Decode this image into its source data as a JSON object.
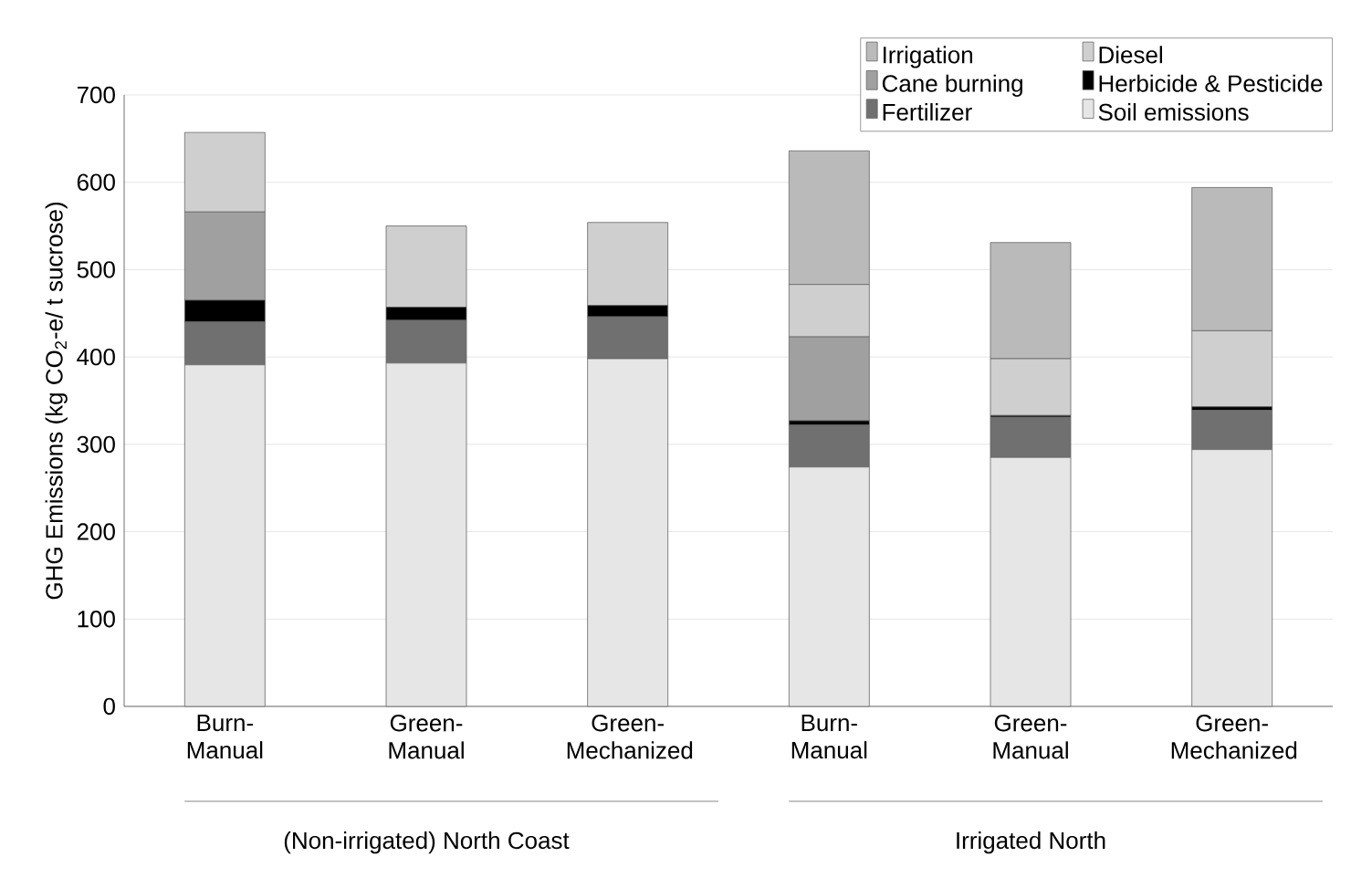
{
  "chart_data": {
    "type": "bar",
    "stacked": true,
    "ylabel": "GHG Emissions (kg CO$_{2}$-e/ t sucrose)",
    "categories": [
      "Burn-Manual",
      "Green-Manual",
      "Green-Mechanized",
      "Burn-Manual",
      "Green-Manual",
      "Green-Mechanized"
    ],
    "series": [
      {
        "name": "Soil emissions",
        "color": "#e6e6e6",
        "values": [
          391,
          393,
          398,
          274,
          285,
          294
        ]
      },
      {
        "name": "Fertilizer",
        "color": "#707070",
        "values": [
          49,
          49,
          48,
          48,
          46,
          45
        ]
      },
      {
        "name": "Herbicide & Pesticide",
        "color": "#000000",
        "values": [
          25,
          15,
          13,
          5,
          2,
          4
        ]
      },
      {
        "name": "Cane burning",
        "color": "#a0a0a0",
        "values": [
          101,
          0,
          0,
          96,
          0,
          0
        ]
      },
      {
        "name": "Diesel",
        "color": "#cfcfcf",
        "values": [
          91,
          93,
          95,
          60,
          65,
          87
        ]
      },
      {
        "name": "Irrigation",
        "color": "#bababa",
        "values": [
          0,
          0,
          0,
          153,
          133,
          164
        ]
      }
    ],
    "ylim": [
      0,
      700
    ],
    "yticks": [
      0,
      100,
      200,
      300,
      400,
      500,
      600,
      700
    ],
    "grid": "y",
    "legend": "top right",
    "annotations": [
      "(Non-irrigated) North Coast",
      "Irrigated North"
    ]
  }
}
